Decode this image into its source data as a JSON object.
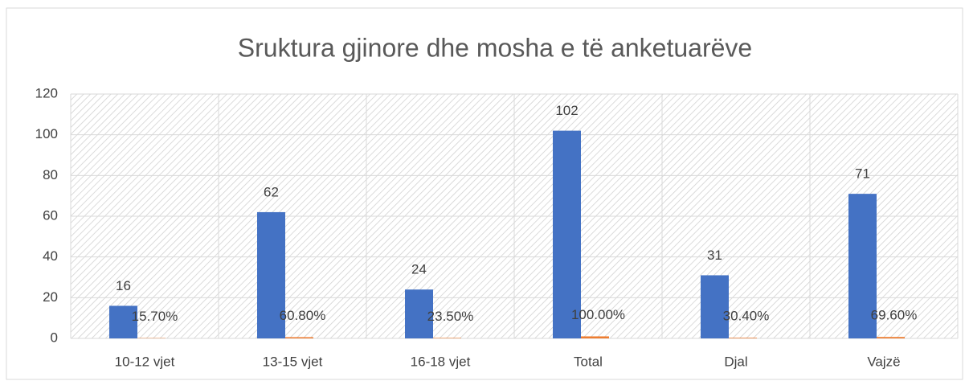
{
  "chart_data": {
    "type": "bar",
    "title": "Sruktura gjinore dhe mosha e të anketuarëve",
    "categories": [
      "10-12 vjet",
      "13-15 vjet",
      "16-18 vjet",
      "Total",
      "Djal",
      "Vajzë"
    ],
    "series": [
      {
        "color": "#4472c4",
        "values": [
          16,
          62,
          24,
          102,
          31,
          71
        ]
      },
      {
        "color": "#ed7d31",
        "values": [
          0.157,
          0.608,
          0.235,
          1,
          0.304,
          0.696
        ],
        "value_labels": [
          "15.70%",
          "60.80%",
          "23.50%",
          "100.00%",
          "30.40%",
          "69.60%"
        ]
      }
    ],
    "ylim": [
      0,
      120
    ],
    "yticks": [
      0,
      20,
      40,
      60,
      80,
      100,
      120
    ],
    "grid": true
  }
}
